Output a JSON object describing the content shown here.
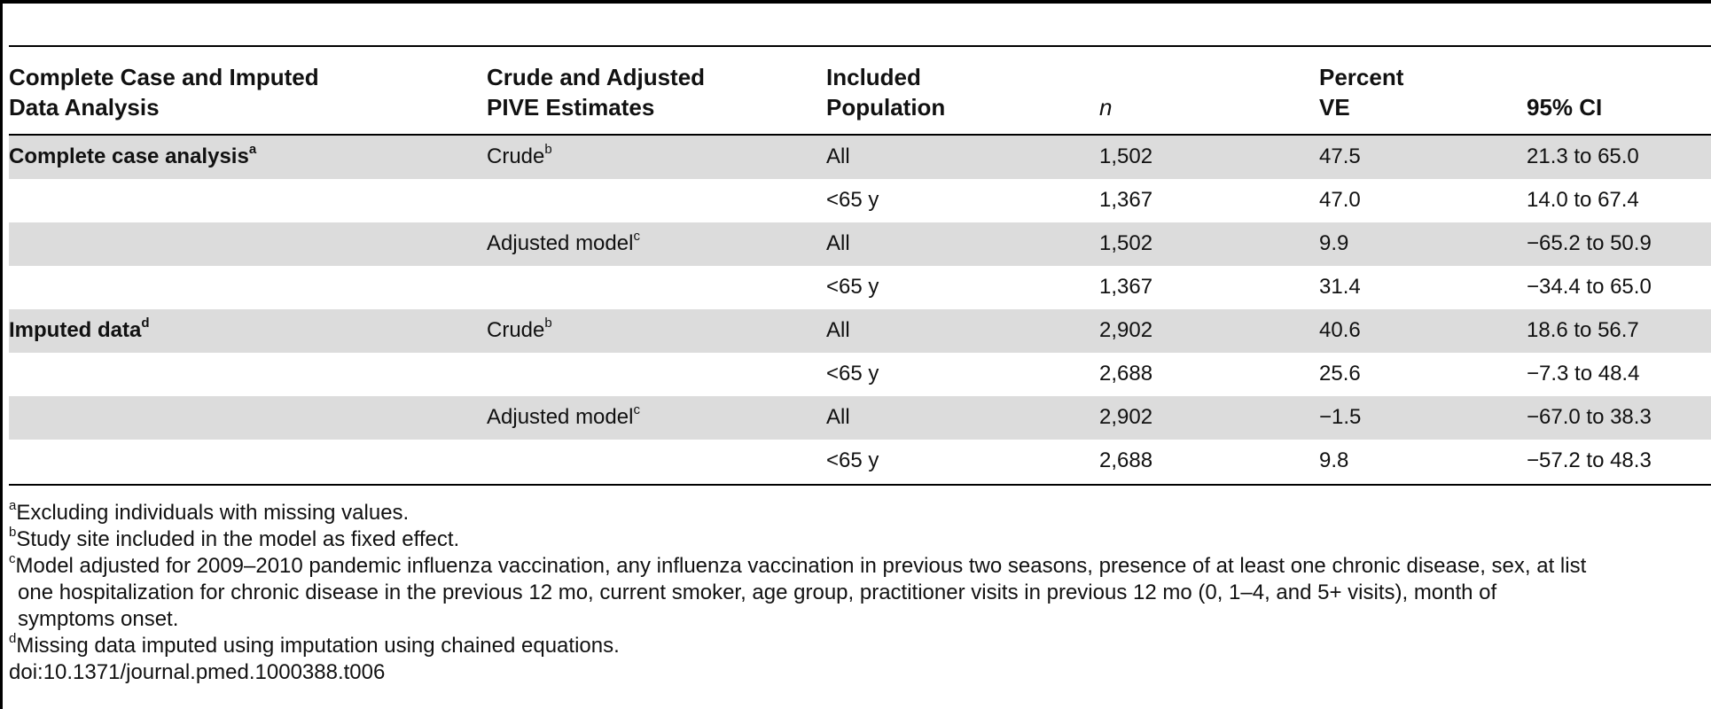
{
  "headers": {
    "col1": [
      "Complete Case and Imputed",
      "Data Analysis"
    ],
    "col2": [
      "Crude and Adjusted",
      "PIVE Estimates"
    ],
    "col3": [
      "Included",
      "Population"
    ],
    "col4": "n",
    "col5": [
      "Percent",
      "VE"
    ],
    "col6": "95% CI"
  },
  "rows": [
    {
      "group": "Complete case analysis",
      "group_sup": "a",
      "estimate": "Crude",
      "estimate_sup": "b",
      "population": "All",
      "n": "1,502",
      "ve": "47.5",
      "ci": "21.3 to 65.0"
    },
    {
      "group": "",
      "group_sup": "",
      "estimate": "",
      "estimate_sup": "",
      "population": "<65 y",
      "n": "1,367",
      "ve": "47.0",
      "ci": "14.0 to 67.4"
    },
    {
      "group": "",
      "group_sup": "",
      "estimate": "Adjusted model",
      "estimate_sup": "c",
      "population": "All",
      "n": "1,502",
      "ve": "9.9",
      "ci": "−65.2 to 50.9"
    },
    {
      "group": "",
      "group_sup": "",
      "estimate": "",
      "estimate_sup": "",
      "population": "<65 y",
      "n": "1,367",
      "ve": "31.4",
      "ci": "−34.4 to 65.0"
    },
    {
      "group": "Imputed data",
      "group_sup": "d",
      "estimate": "Crude",
      "estimate_sup": "b",
      "population": "All",
      "n": "2,902",
      "ve": "40.6",
      "ci": "18.6 to 56.7"
    },
    {
      "group": "",
      "group_sup": "",
      "estimate": "",
      "estimate_sup": "",
      "population": "<65 y",
      "n": "2,688",
      "ve": "25.6",
      "ci": "−7.3 to 48.4"
    },
    {
      "group": "",
      "group_sup": "",
      "estimate": "Adjusted model",
      "estimate_sup": "c",
      "population": "All",
      "n": "2,902",
      "ve": "−1.5",
      "ci": "−67.0 to 38.3"
    },
    {
      "group": "",
      "group_sup": "",
      "estimate": "",
      "estimate_sup": "",
      "population": "<65 y",
      "n": "2,688",
      "ve": "9.8",
      "ci": "−57.2 to 48.3"
    }
  ],
  "footnotes": [
    {
      "mark": "a",
      "text": "Excluding individuals with missing values."
    },
    {
      "mark": "b",
      "text": "Study site included in the model as fixed effect."
    },
    {
      "mark": "c",
      "text": "Model adjusted for 2009–2010 pandemic influenza vaccination, any influenza vaccination in previous two seasons, presence of at least one chronic disease, sex, at list"
    },
    {
      "mark": "",
      "text": "one hospitalization for chronic disease in the previous 12 mo, current smoker, age group, practitioner visits in previous 12 mo (0, 1–4, and 5+ visits), month of"
    },
    {
      "mark": "",
      "text": "symptoms onset."
    },
    {
      "mark": "d",
      "text": "Missing data imputed using imputation using chained equations."
    }
  ],
  "doi": "doi:10.1371/journal.pmed.1000388.t006",
  "colors": {
    "shade": "#dcdcdc",
    "rule": "#000000",
    "text": "#111111"
  }
}
